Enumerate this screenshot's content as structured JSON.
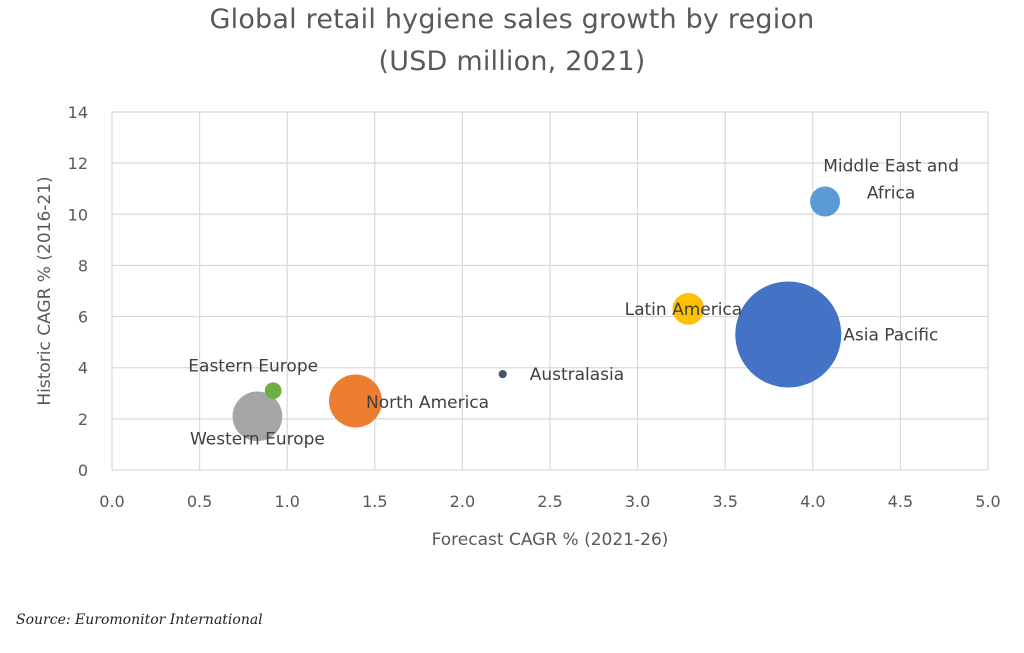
{
  "chart_data": {
    "type": "bubble",
    "title": [
      "Global retail hygiene sales growth by region",
      "(USD million, 2021)"
    ],
    "xlabel": "Forecast CAGR % (2021-26)",
    "ylabel": "Historic CAGR % (2016-21)",
    "xlim": [
      0,
      5
    ],
    "ylim": [
      0,
      14
    ],
    "xticks": [
      "0.0",
      "0.5",
      "1.0",
      "1.5",
      "2.0",
      "2.5",
      "3.0",
      "3.5",
      "4.0",
      "4.5",
      "5.0"
    ],
    "yticks": [
      "0",
      "2",
      "4",
      "6",
      "8",
      "10",
      "12",
      "14"
    ],
    "x_tick_values": [
      0,
      0.5,
      1,
      1.5,
      2,
      2.5,
      3,
      3.5,
      4,
      4.5,
      5
    ],
    "y_tick_values": [
      0,
      2,
      4,
      6,
      8,
      10,
      12,
      14
    ],
    "grid": true,
    "legend": "none",
    "series": [
      {
        "name": "Western Europe",
        "x": 0.83,
        "y": 2.1,
        "size": 22,
        "color": "#a5a5a5",
        "label_lines": [
          "Western Europe"
        ]
      },
      {
        "name": "Eastern Europe",
        "x": 0.92,
        "y": 3.1,
        "size": 2.5,
        "color": "#70ad47",
        "label_lines": [
          "Eastern Europe"
        ]
      },
      {
        "name": "North America",
        "x": 1.39,
        "y": 2.7,
        "size": 25,
        "color": "#ed7d31",
        "label_lines": [
          "North America"
        ]
      },
      {
        "name": "Australasia",
        "x": 2.23,
        "y": 3.75,
        "size": 0.6,
        "color": "#44546a",
        "label_lines": [
          "Australasia"
        ]
      },
      {
        "name": "Latin America",
        "x": 3.29,
        "y": 6.3,
        "size": 9,
        "color": "#ffc000",
        "label_lines": [
          "Latin America"
        ]
      },
      {
        "name": "Asia Pacific",
        "x": 3.86,
        "y": 5.3,
        "size": 100,
        "color": "#4472c4",
        "label_lines": [
          "Asia Pacific"
        ]
      },
      {
        "name": "Middle East and Africa",
        "x": 4.07,
        "y": 10.5,
        "size": 8,
        "color": "#5b9bd5",
        "label_lines": [
          "Middle East and",
          "Africa"
        ]
      }
    ]
  },
  "source": "Source: Euromonitor International",
  "colors": {
    "axis_text": "#595959",
    "gridline": "#d9d9d9"
  }
}
